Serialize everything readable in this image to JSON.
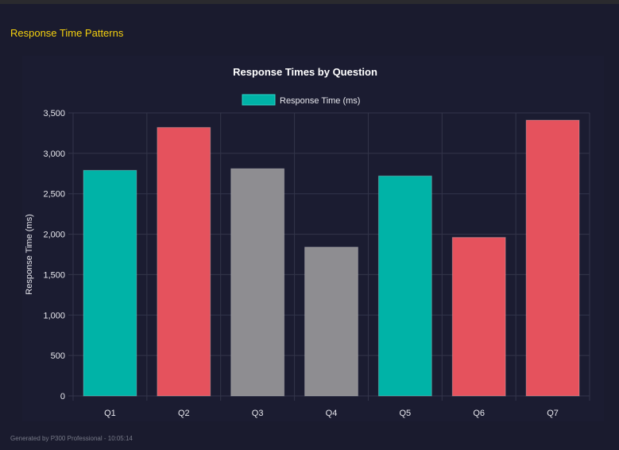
{
  "header": {
    "title": "Response Time Patterns"
  },
  "footer": {
    "text": "Generated by P300 Professional - 10:05:14"
  },
  "chart_data": {
    "type": "bar",
    "title": "Response Times by Question",
    "legend": {
      "label": "Response Time (ms)",
      "color": "#00b3a7",
      "placement": "top"
    },
    "ylabel": "Response Time (ms)",
    "xlabel": "",
    "ylim": [
      0,
      3500
    ],
    "yticks": [
      0,
      500,
      1000,
      1500,
      2000,
      2500,
      3000,
      3500
    ],
    "ytick_labels": [
      "0",
      "500",
      "1,000",
      "1,500",
      "2,000",
      "2,500",
      "3,000",
      "3,500"
    ],
    "grid": true,
    "categories": [
      "Q1",
      "Q2",
      "Q3",
      "Q4",
      "Q5",
      "Q6",
      "Q7"
    ],
    "values": [
      2790,
      3320,
      2810,
      1840,
      2720,
      1960,
      3410
    ],
    "colors": [
      "#00b3a7",
      "#e5525d",
      "#8e8d91",
      "#8e8d91",
      "#00b3a7",
      "#e5525d",
      "#e5525d"
    ]
  }
}
